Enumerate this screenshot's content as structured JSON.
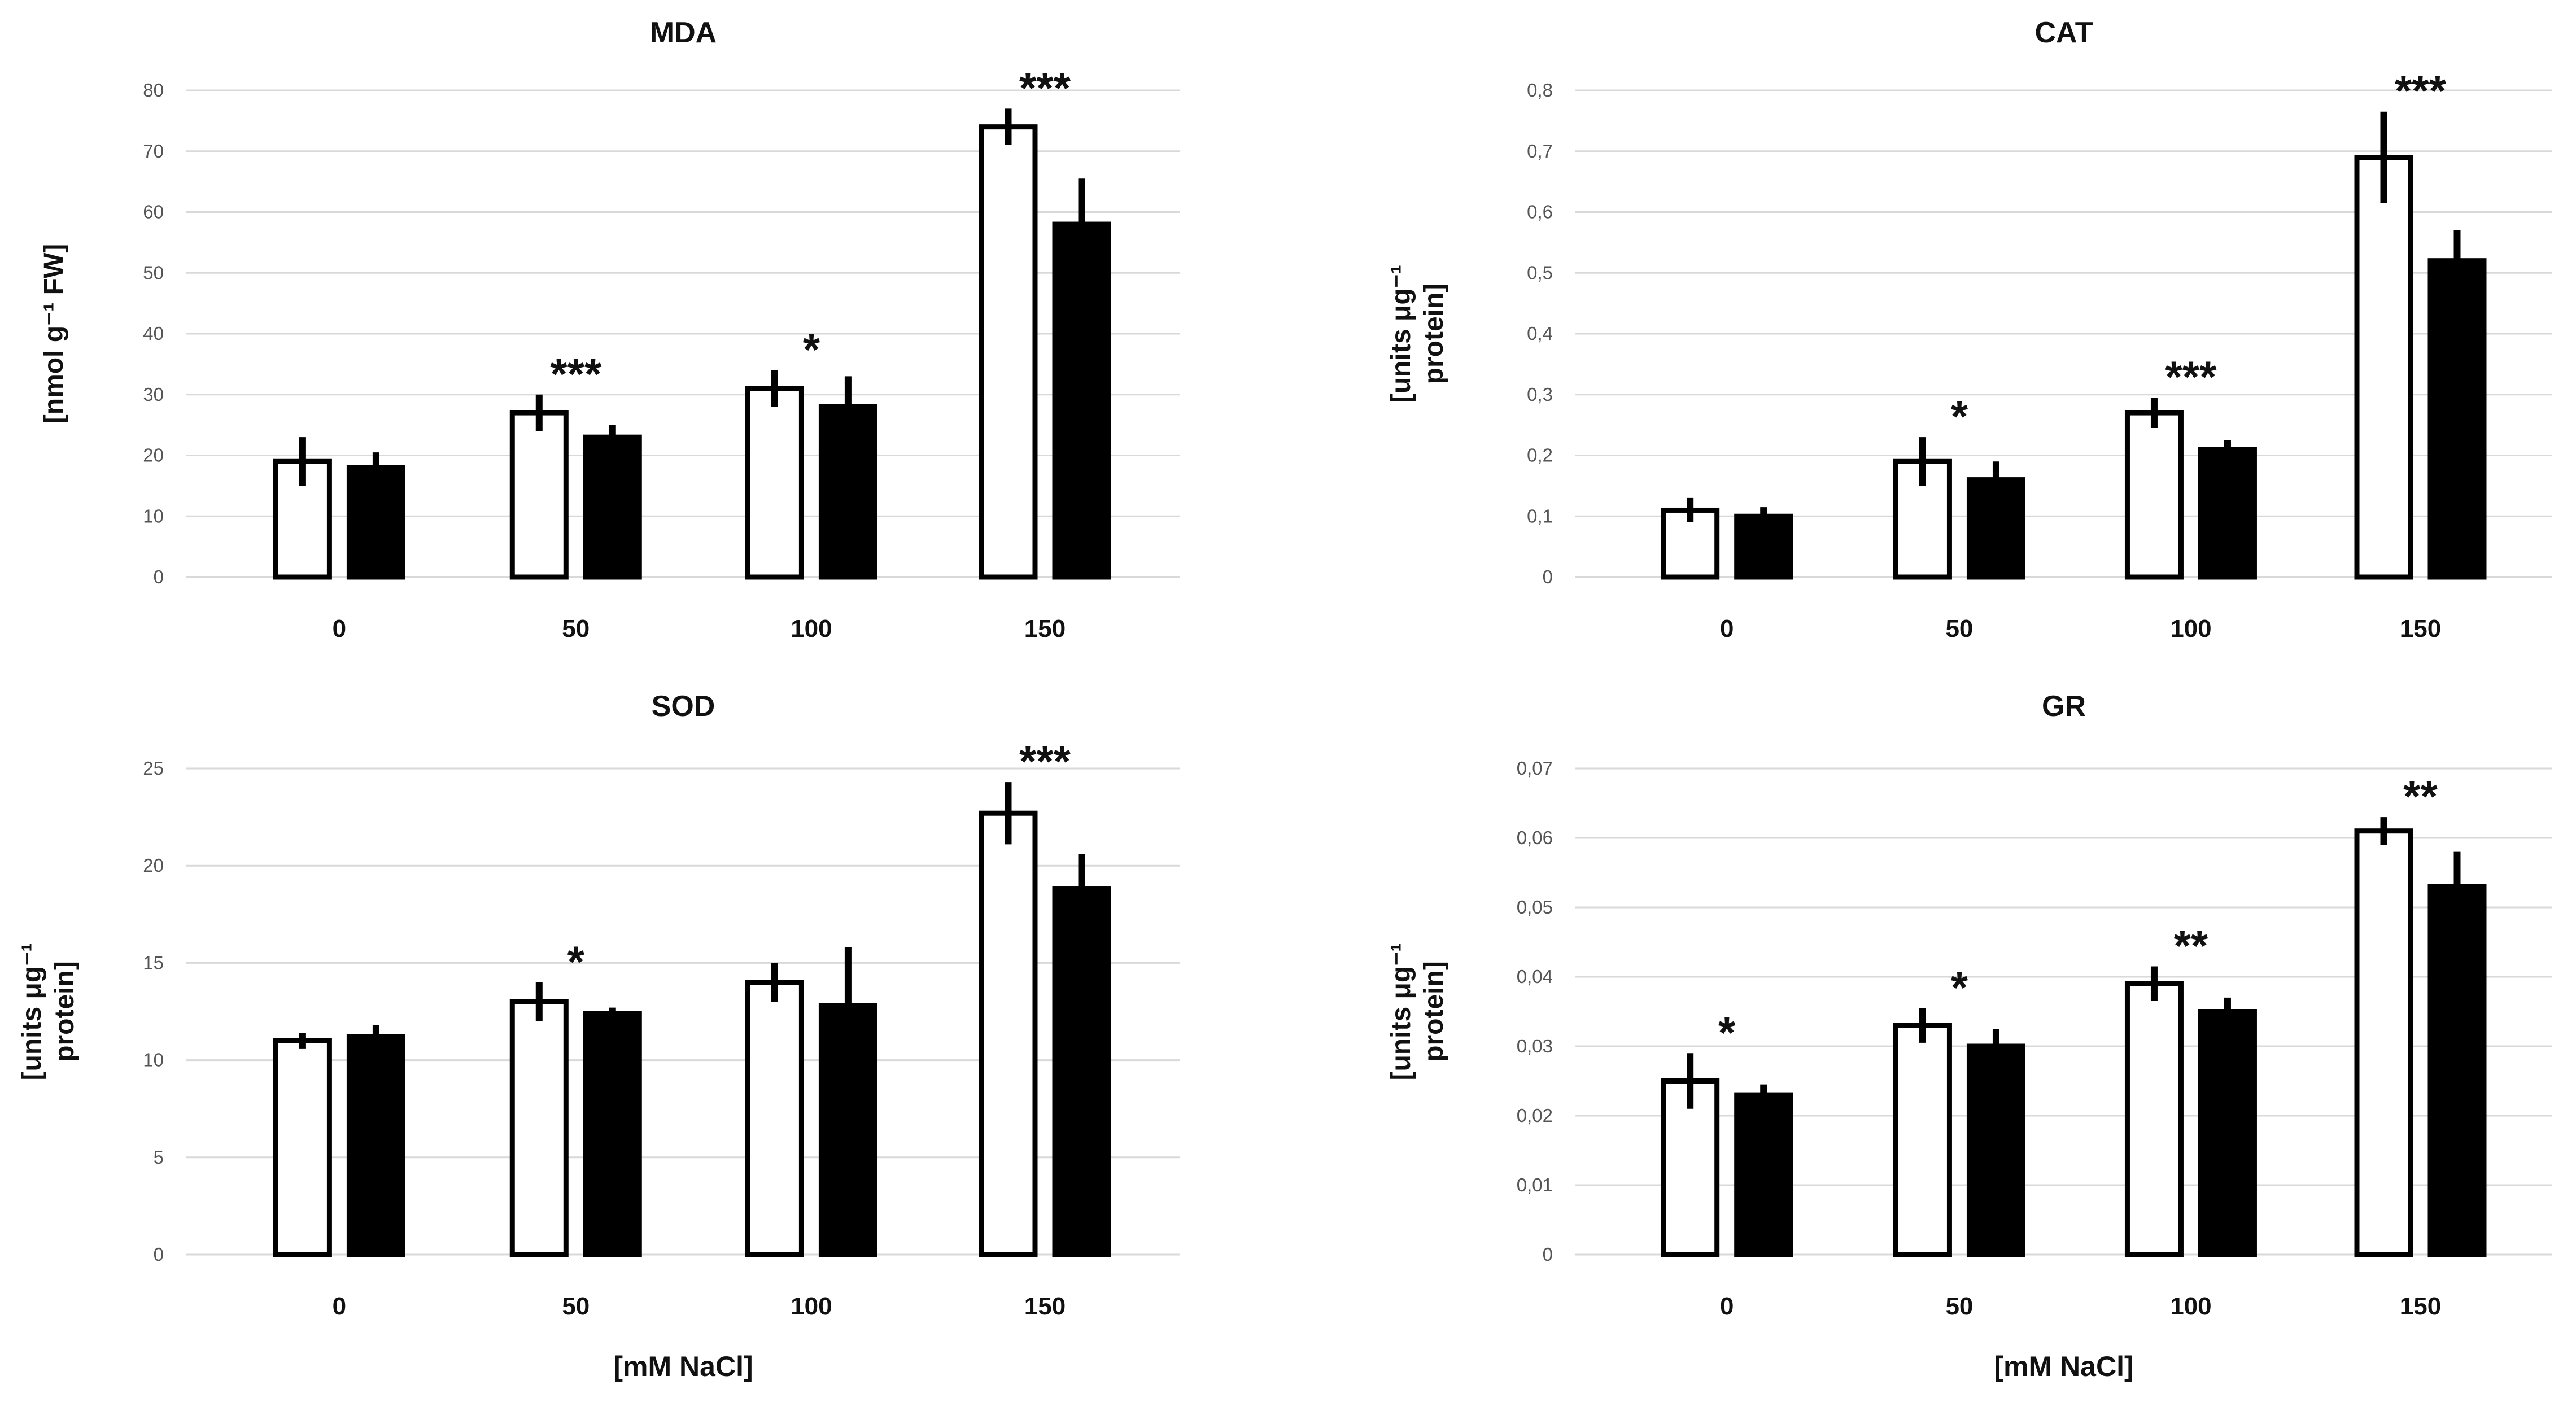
{
  "colors": {
    "control_bar": "#ffffff",
    "treated_bar": "#000000",
    "outline": "#000000",
    "grid": "#d9d9d9"
  },
  "chart_data": [
    {
      "type": "bar",
      "title": "MDA",
      "ylabel_lines": [
        "[nmol g⁻¹ FW]"
      ],
      "xlabel": "",
      "categories": [
        "0",
        "50",
        "100",
        "150"
      ],
      "ylim": [
        0,
        80
      ],
      "yticks": [
        0,
        10,
        20,
        30,
        40,
        50,
        60,
        70,
        80
      ],
      "ytick_labels": [
        "0",
        "10",
        "20",
        "30",
        "40",
        "50",
        "60",
        "70",
        "80"
      ],
      "grid": true,
      "series": [
        {
          "name": "white",
          "values": [
            19,
            27,
            31,
            74
          ],
          "errors": [
            4,
            3,
            3,
            3
          ]
        },
        {
          "name": "black",
          "values": [
            18,
            23,
            28,
            58
          ],
          "errors": [
            2.5,
            2,
            5,
            7.5
          ]
        }
      ],
      "significance": [
        "",
        "***",
        "*",
        "***"
      ]
    },
    {
      "type": "bar",
      "title": "CAT",
      "ylabel_lines": [
        "[units μg⁻¹",
        "protein]"
      ],
      "xlabel": "",
      "categories": [
        "0",
        "50",
        "100",
        "150"
      ],
      "ylim": [
        0,
        0.8
      ],
      "yticks": [
        0,
        0.1,
        0.2,
        0.3,
        0.4,
        0.5,
        0.6,
        0.7,
        0.8
      ],
      "ytick_labels": [
        "0",
        "0,1",
        "0,2",
        "0,3",
        "0,4",
        "0,5",
        "0,6",
        "0,7",
        "0,8"
      ],
      "grid": true,
      "series": [
        {
          "name": "white",
          "values": [
            0.11,
            0.19,
            0.27,
            0.69
          ],
          "errors": [
            0.02,
            0.04,
            0.025,
            0.075
          ]
        },
        {
          "name": "black",
          "values": [
            0.1,
            0.16,
            0.21,
            0.52
          ],
          "errors": [
            0.015,
            0.03,
            0.015,
            0.05
          ]
        }
      ],
      "significance": [
        "",
        "*",
        "***",
        "***"
      ]
    },
    {
      "type": "bar",
      "title": "SOD",
      "ylabel_lines": [
        "[units μg⁻¹",
        "protein]"
      ],
      "xlabel": "[mM NaCl]",
      "categories": [
        "0",
        "50",
        "100",
        "150"
      ],
      "ylim": [
        0,
        25
      ],
      "yticks": [
        0,
        5,
        10,
        15,
        20,
        25
      ],
      "ytick_labels": [
        "0",
        "5",
        "10",
        "15",
        "20",
        "25"
      ],
      "grid": true,
      "series": [
        {
          "name": "white",
          "values": [
            11,
            13,
            14,
            22.7
          ],
          "errors": [
            0.4,
            1,
            1,
            1.6
          ]
        },
        {
          "name": "black",
          "values": [
            11.2,
            12.4,
            12.8,
            18.8
          ],
          "errors": [
            0.6,
            0.3,
            3,
            1.8
          ]
        }
      ],
      "significance": [
        "",
        "*",
        "",
        "***"
      ]
    },
    {
      "type": "bar",
      "title": "GR",
      "ylabel_lines": [
        "[units μg⁻¹",
        "protein]"
      ],
      "xlabel": "[mM NaCl]",
      "categories": [
        "0",
        "50",
        "100",
        "150"
      ],
      "ylim": [
        0,
        0.07
      ],
      "yticks": [
        0,
        0.01,
        0.02,
        0.03,
        0.04,
        0.05,
        0.06,
        0.07
      ],
      "ytick_labels": [
        "0",
        "0,01",
        "0,02",
        "0,03",
        "0,04",
        "0,05",
        "0,06",
        "0,07"
      ],
      "grid": true,
      "series": [
        {
          "name": "white",
          "values": [
            0.025,
            0.033,
            0.039,
            0.061
          ],
          "errors": [
            0.004,
            0.0025,
            0.0025,
            0.002
          ]
        },
        {
          "name": "black",
          "values": [
            0.023,
            0.03,
            0.035,
            0.053
          ],
          "errors": [
            0.0015,
            0.0025,
            0.002,
            0.005
          ]
        }
      ],
      "significance": [
        "*",
        "*",
        "**",
        "**"
      ]
    }
  ]
}
